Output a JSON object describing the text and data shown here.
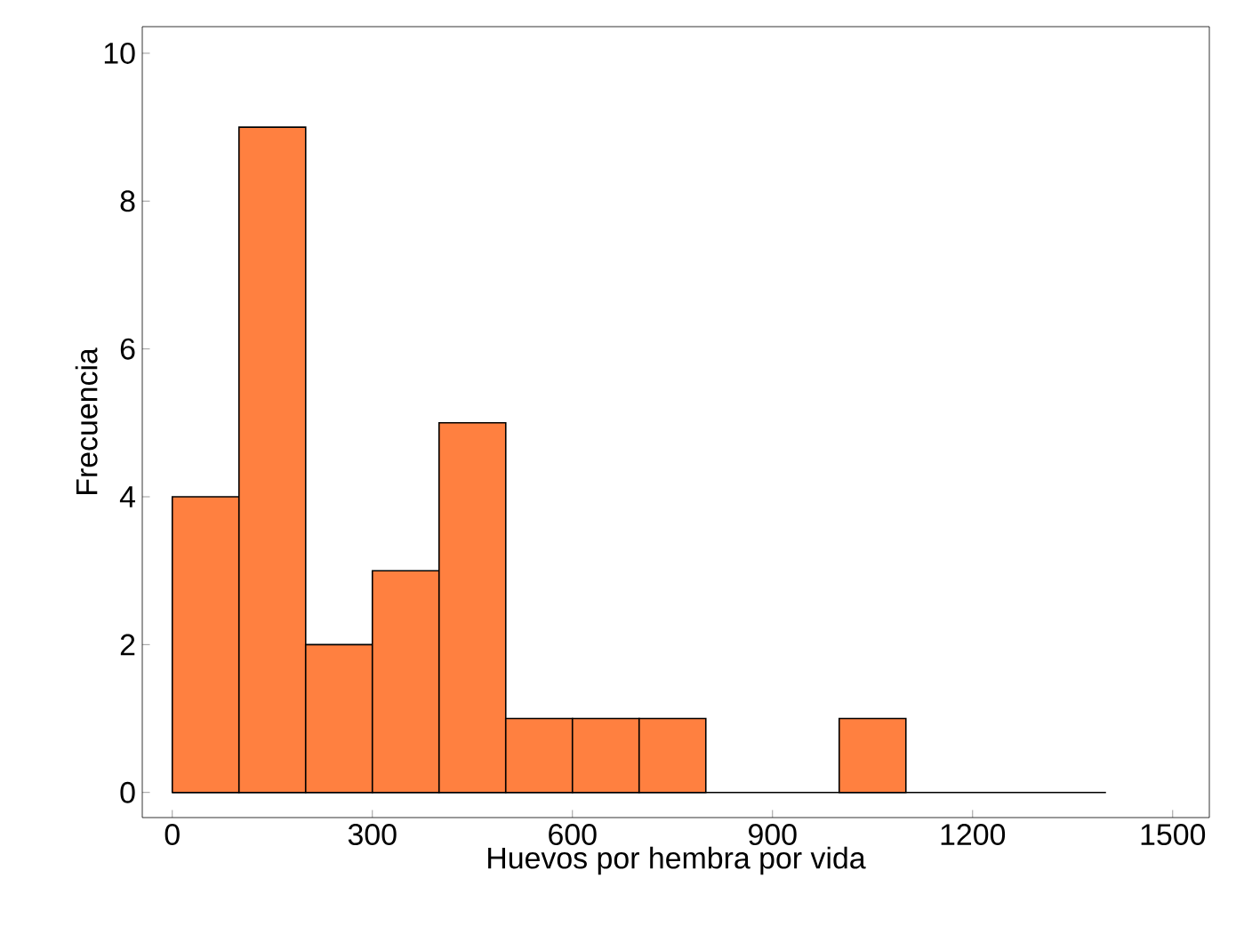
{
  "chart_data": {
    "type": "histogram",
    "xlabel": "Huevos por hembra por vida",
    "ylabel": "Frecuencia",
    "bins": [
      0,
      100,
      200,
      300,
      400,
      500,
      600,
      700,
      800,
      900,
      1000,
      1100,
      1200,
      1300,
      1400
    ],
    "values": [
      4,
      9,
      2,
      3,
      5,
      1,
      1,
      1,
      0,
      0,
      1,
      0,
      0,
      0
    ],
    "color": "#ff8040",
    "xlim": [
      -45,
      1555
    ],
    "ylim": [
      -0.34,
      10.36
    ],
    "xticks": [
      0,
      300,
      600,
      900,
      1200,
      1500
    ],
    "yticks": [
      0,
      2,
      4,
      6,
      8,
      10
    ]
  }
}
